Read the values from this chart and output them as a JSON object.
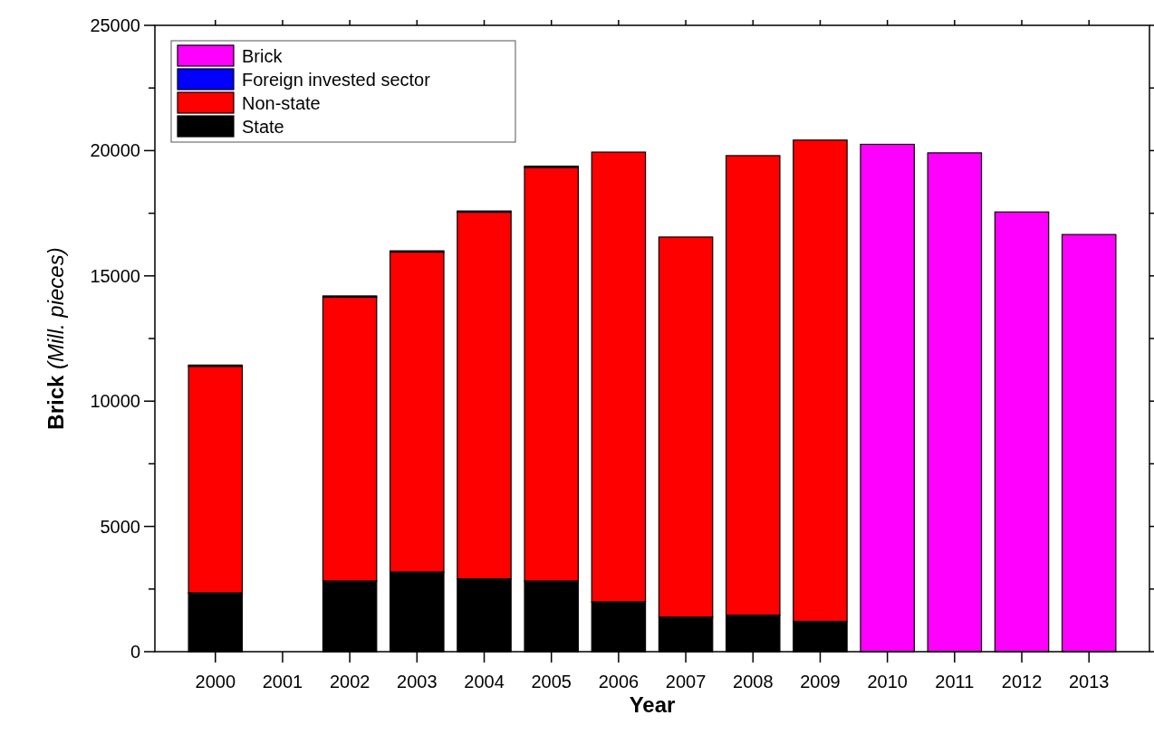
{
  "chart_data": {
    "type": "bar",
    "stacked": true,
    "xlabel": "Year",
    "ylabel": "Brick (Mill. pieces)",
    "categories": [
      "2000",
      "2001",
      "2002",
      "2003",
      "2004",
      "2005",
      "2006",
      "2007",
      "2008",
      "2009",
      "2010",
      "2011",
      "2012",
      "2013"
    ],
    "series": [
      {
        "name": "State",
        "color": "#000000",
        "values": [
          2350,
          null,
          2820,
          3180,
          2910,
          2820,
          1990,
          1380,
          1460,
          1210,
          null,
          null,
          null,
          null
        ]
      },
      {
        "name": "Non-state",
        "color": "#ff0000",
        "values": [
          9040,
          null,
          11330,
          12770,
          14630,
          16510,
          17950,
          15170,
          18340,
          19210,
          null,
          null,
          null,
          null
        ]
      },
      {
        "name": "Foreign invested sector",
        "color": "#0000ff",
        "values": [
          50,
          null,
          50,
          50,
          50,
          50,
          null,
          null,
          null,
          null,
          null,
          null,
          null,
          null
        ]
      },
      {
        "name": "Brick",
        "color": "#ff00ff",
        "values": [
          null,
          null,
          null,
          null,
          null,
          null,
          null,
          null,
          null,
          null,
          20250,
          19910,
          17550,
          16650
        ]
      }
    ],
    "ylim": [
      0,
      25000
    ],
    "yticks": [
      0,
      {
        "value": 2500,
        "label": null
      },
      5000,
      {
        "value": 7500,
        "label": null
      },
      10000,
      {
        "value": 12500,
        "label": null
      },
      15000,
      {
        "value": 17500,
        "label": null
      },
      20000,
      {
        "value": 22500,
        "label": null
      },
      25000
    ],
    "legend": "top left",
    "grid": false
  }
}
